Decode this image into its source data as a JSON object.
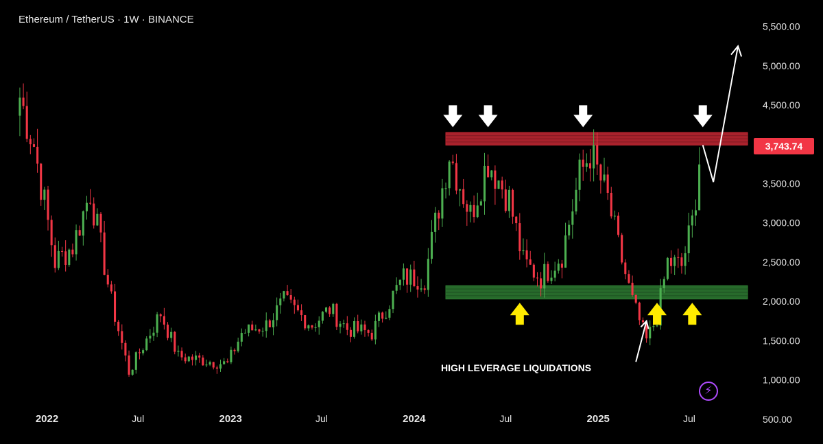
{
  "header": {
    "symbol_title": "Ethereum / TetherUS · 1W · BINANCE"
  },
  "badge": {
    "last_price": "3,743.74"
  },
  "annotation": {
    "text": "HIGH LEVERAGE LIQUIDATIONS"
  },
  "colors": {
    "background": "#000000",
    "up": "#4caf50",
    "down": "#f23645",
    "resistance_zone": "#c62834",
    "support_zone": "#2e7d32",
    "signal_arrow_top": "#ffffff",
    "signal_arrow_bottom": "#ffeb00",
    "logo": "#b04cff"
  },
  "icons": {
    "logo": "lightning-bolt-icon"
  },
  "chart_data": {
    "type": "candlestick",
    "title": "Ethereum / TetherUS · 1W · BINANCE",
    "interval": "1W",
    "y_axis": {
      "side": "right",
      "ticks": [
        500,
        1000,
        1500,
        2000,
        2500,
        3000,
        3500,
        4000,
        4500,
        5000,
        5500
      ],
      "tick_labels": [
        "500.00",
        "1,000.00",
        "1,500.00",
        "2,000.00",
        "2,500.00",
        "3,000.00",
        "3,500.00",
        "4,000.00",
        "4,500.00",
        "5,000.00",
        "5,500.00"
      ],
      "ylim": [
        350,
        5750
      ]
    },
    "x_axis": {
      "ticks": [
        "2022-01-01",
        "2022-07-01",
        "2023-01-01",
        "2023-07-01",
        "2024-01-01",
        "2024-07-01",
        "2025-01-01",
        "2025-07-01"
      ],
      "tick_labels": [
        "2022",
        "Jul",
        "2023",
        "Jul",
        "2024",
        "Jul",
        "2025",
        "Jul"
      ],
      "xlim": [
        "2021-10-20",
        "2025-10-25"
      ]
    },
    "grid": false,
    "last_price": 3743.74,
    "keypoints": [
      {
        "date": "2021-11-08",
        "close": 4600
      },
      {
        "date": "2021-12-06",
        "close": 4000
      },
      {
        "date": "2022-01-17",
        "close": 2500
      },
      {
        "date": "2022-02-21",
        "close": 2700
      },
      {
        "date": "2022-03-28",
        "close": 3400
      },
      {
        "date": "2022-05-09",
        "close": 2000
      },
      {
        "date": "2022-06-13",
        "close": 1100
      },
      {
        "date": "2022-07-25",
        "close": 1600
      },
      {
        "date": "2022-08-15",
        "close": 1850
      },
      {
        "date": "2022-09-19",
        "close": 1300
      },
      {
        "date": "2022-11-07",
        "close": 1250
      },
      {
        "date": "2022-12-26",
        "close": 1200
      },
      {
        "date": "2023-01-23",
        "close": 1600
      },
      {
        "date": "2023-03-13",
        "close": 1700
      },
      {
        "date": "2023-04-17",
        "close": 2000
      },
      {
        "date": "2023-06-12",
        "close": 1700
      },
      {
        "date": "2023-07-17",
        "close": 1900
      },
      {
        "date": "2023-08-21",
        "close": 1650
      },
      {
        "date": "2023-10-09",
        "close": 1600
      },
      {
        "date": "2023-11-13",
        "close": 2000
      },
      {
        "date": "2023-12-11",
        "close": 2300
      },
      {
        "date": "2024-01-22",
        "close": 2300
      },
      {
        "date": "2024-03-11",
        "close": 3900
      },
      {
        "date": "2024-04-22",
        "close": 3100
      },
      {
        "date": "2024-05-27",
        "close": 3800
      },
      {
        "date": "2024-07-08",
        "close": 3300
      },
      {
        "date": "2024-08-05",
        "close": 2500
      },
      {
        "date": "2024-09-09",
        "close": 2300
      },
      {
        "date": "2024-10-21",
        "close": 2600
      },
      {
        "date": "2024-11-25",
        "close": 3600
      },
      {
        "date": "2024-12-16",
        "close": 3900
      },
      {
        "date": "2025-01-20",
        "close": 3300
      },
      {
        "date": "2025-02-10",
        "close": 2700
      },
      {
        "date": "2025-03-10",
        "close": 2000
      },
      {
        "date": "2025-04-07",
        "close": 1500
      },
      {
        "date": "2025-04-28",
        "close": 1800
      },
      {
        "date": "2025-05-19",
        "close": 2500
      },
      {
        "date": "2025-06-16",
        "close": 2450
      },
      {
        "date": "2025-07-07",
        "close": 3000
      },
      {
        "date": "2025-07-21",
        "close": 3743.74
      }
    ],
    "zones": [
      {
        "kind": "resistance",
        "from_date": "2024-03-04",
        "to_date": "2025-10-25",
        "y_low": 3990,
        "y_high": 4150
      },
      {
        "kind": "support",
        "from_date": "2024-03-04",
        "to_date": "2025-10-25",
        "y_low": 2030,
        "y_high": 2200
      }
    ],
    "signal_arrows": [
      {
        "direction": "down",
        "date": "2024-03-18",
        "y": 4340
      },
      {
        "direction": "down",
        "date": "2024-05-27",
        "y": 4340
      },
      {
        "direction": "down",
        "date": "2024-12-02",
        "y": 4340
      },
      {
        "direction": "down",
        "date": "2025-07-28",
        "y": 4340
      },
      {
        "direction": "up",
        "date": "2024-07-29",
        "y": 1860
      },
      {
        "direction": "up",
        "date": "2025-04-28",
        "y": 1860
      },
      {
        "direction": "up",
        "date": "2025-07-07",
        "y": 1860
      }
    ],
    "projection": [
      {
        "date": "2025-07-28",
        "y": 3990
      },
      {
        "date": "2025-08-18",
        "y": 3520
      },
      {
        "date": "2025-10-06",
        "y": 5250
      }
    ],
    "annotation_pointer": {
      "from_date": "2025-03-17",
      "from_y": 1230,
      "to_date": "2025-04-07",
      "to_y": 1750
    }
  }
}
